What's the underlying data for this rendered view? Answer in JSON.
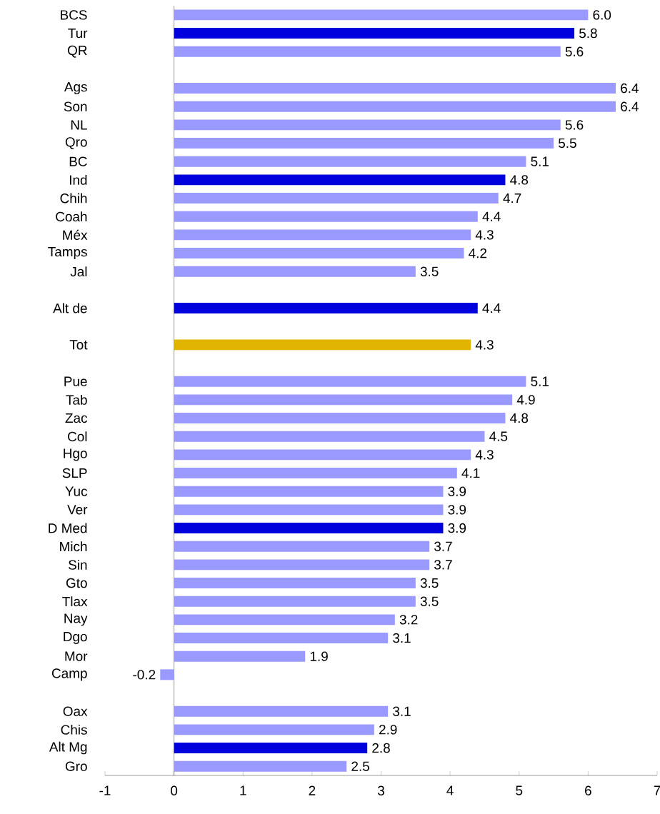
{
  "chart_data": {
    "type": "bar",
    "orientation": "horizontal",
    "categories": [
      "BCS",
      "Tur",
      "QR",
      null,
      "Ags",
      "Son",
      "NL",
      "Qro",
      "BC",
      "Ind",
      "Chih",
      "Coah",
      "Méx",
      "Tamps",
      "Jal",
      null,
      "Alt de",
      null,
      "Tot",
      null,
      "Pue",
      "Tab",
      "Zac",
      "Col",
      "Hgo",
      "SLP",
      "Yuc",
      "Ver",
      "D Med",
      "Mich",
      "Sin",
      "Gto",
      "Tlax",
      "Nay",
      "Dgo",
      "Mor",
      "Camp",
      null,
      "Oax",
      "Chis",
      "Alt Mg",
      "Gro"
    ],
    "values": [
      6.0,
      5.8,
      5.6,
      null,
      6.4,
      6.4,
      5.6,
      5.5,
      5.1,
      4.8,
      4.7,
      4.4,
      4.3,
      4.2,
      3.5,
      null,
      4.4,
      null,
      4.3,
      null,
      5.1,
      4.9,
      4.8,
      4.5,
      4.3,
      4.1,
      3.9,
      3.9,
      3.9,
      3.7,
      3.7,
      3.5,
      3.5,
      3.2,
      3.1,
      1.9,
      -0.2,
      null,
      3.1,
      2.9,
      2.8,
      2.5
    ],
    "value_labels": [
      "6.0",
      "5.8",
      "5.6",
      null,
      "6.4",
      "6.4",
      "5.6",
      "5.5",
      "5.1",
      "4.8",
      "4.7",
      "4.4",
      "4.3",
      "4.2",
      "3.5",
      null,
      "4.4",
      null,
      "4.3",
      null,
      "5.1",
      "4.9",
      "4.8",
      "4.5",
      "4.3",
      "4.1",
      "3.9",
      "3.9",
      "3.9",
      "3.7",
      "3.7",
      "3.5",
      "3.5",
      "3.2",
      "3.1",
      "1.9",
      "-0.2",
      null,
      "3.1",
      "2.9",
      "2.8",
      "2.5"
    ],
    "colors": [
      "#9999ff",
      "#0000dd",
      "#9999ff",
      null,
      "#9999ff",
      "#9999ff",
      "#9999ff",
      "#9999ff",
      "#9999ff",
      "#0000dd",
      "#9999ff",
      "#9999ff",
      "#9999ff",
      "#9999ff",
      "#9999ff",
      null,
      "#0000dd",
      null,
      "#e0b400",
      null,
      "#9999ff",
      "#9999ff",
      "#9999ff",
      "#9999ff",
      "#9999ff",
      "#9999ff",
      "#9999ff",
      "#9999ff",
      "#0000dd",
      "#9999ff",
      "#9999ff",
      "#9999ff",
      "#9999ff",
      "#9999ff",
      "#9999ff",
      "#9999ff",
      "#9999ff",
      null,
      "#9999ff",
      "#9999ff",
      "#0000dd",
      "#9999ff"
    ],
    "xlim": [
      -1,
      7
    ],
    "xticks": [
      -1,
      0,
      1,
      2,
      3,
      4,
      5,
      6,
      7
    ]
  }
}
